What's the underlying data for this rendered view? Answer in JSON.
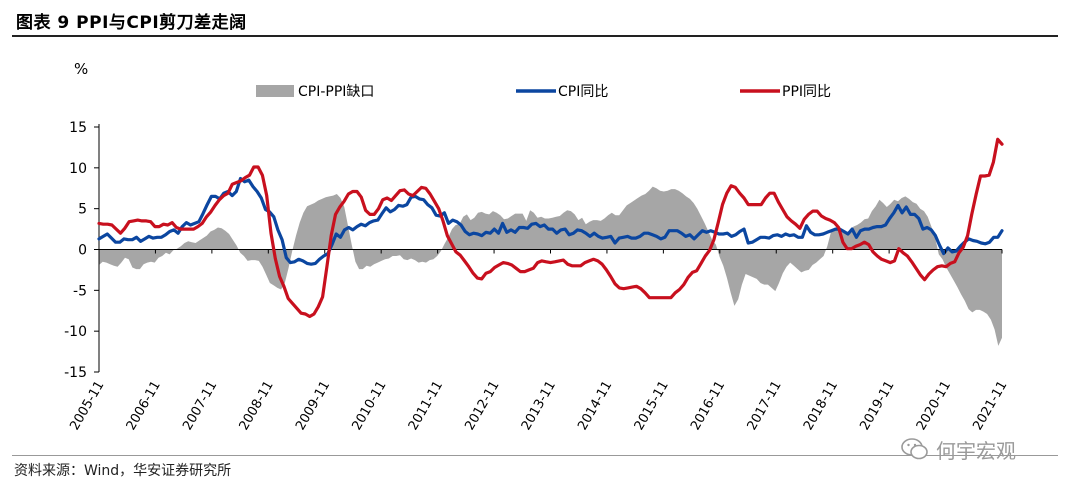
{
  "figure_title": "图表 9 PPI与CPI剪刀差走阔",
  "source_note": "资料来源：Wind，华安证券研究所",
  "watermark_text": "何宇宏观",
  "chart_data": {
    "type": "line",
    "y_unit": "%",
    "ylim": [
      -15,
      15
    ],
    "yticks": [
      15,
      10,
      5,
      0,
      -5,
      -10,
      -15
    ],
    "x_tick_labels": [
      "2005-11",
      "2006-11",
      "2007-11",
      "2008-11",
      "2009-11",
      "2010-11",
      "2011-11",
      "2012-11",
      "2013-11",
      "2014-11",
      "2015-11",
      "2016-11",
      "2017-11",
      "2018-11",
      "2019-11",
      "2020-11",
      "2021-11"
    ],
    "x_start": "2005-11",
    "x_end": "2021-11",
    "legend_position": "top",
    "grid": false,
    "colors": {
      "spread": "#a6a6a6",
      "cpi": "#0b46a0",
      "ppi": "#c8101e"
    },
    "series": [
      {
        "name": "CPI-PPI缺口",
        "kind": "area",
        "values": [
          -1.9,
          -1.5,
          -1.6,
          -1.8,
          -2.0,
          -2.1,
          -1.6,
          -1.0,
          -1.2,
          -2.2,
          -2.4,
          -2.4,
          -1.8,
          -1.6,
          -1.5,
          -1.6,
          -1.0,
          -0.8,
          -0.4,
          -0.6,
          -0.1,
          0.1,
          0.4,
          0.8,
          1.0,
          0.9,
          0.8,
          1.1,
          1.4,
          1.7,
          2.2,
          2.4,
          2.7,
          2.6,
          2.3,
          1.9,
          1.2,
          0.5,
          -0.4,
          -0.8,
          -1.4,
          -1.3,
          -1.3,
          -1.4,
          -2.1,
          -3.1,
          -4.1,
          -4.4,
          -4.7,
          -4.9,
          -4.1,
          -2.3,
          -0.2,
          1.7,
          3.3,
          4.5,
          5.3,
          5.5,
          5.7,
          6.0,
          6.2,
          6.4,
          6.5,
          6.6,
          6.8,
          6.3,
          5.2,
          2.9,
          0.6,
          -1.5,
          -2.4,
          -2.4,
          -2.0,
          -2.1,
          -1.8,
          -1.6,
          -1.4,
          -1.2,
          -1.1,
          -0.8,
          -0.8,
          -0.7,
          -1.2,
          -1.3,
          -1.1,
          -1.3,
          -1.6,
          -1.5,
          -1.6,
          -1.3,
          -1.2,
          -0.8,
          -0.2,
          0.7,
          1.5,
          2.5,
          3.0,
          3.1,
          4.0,
          4.3,
          3.6,
          3.9,
          4.5,
          4.6,
          4.4,
          4.3,
          4.7,
          4.5,
          4.2,
          3.7,
          3.8,
          4.1,
          4.4,
          4.4,
          4.4,
          3.5,
          4.8,
          4.5,
          3.9,
          4.0,
          3.8,
          3.8,
          3.9,
          4.0,
          4.1,
          4.5,
          4.8,
          4.7,
          4.3,
          3.6,
          3.9,
          3.1,
          3.4,
          3.6,
          3.6,
          3.5,
          3.8,
          4.2,
          4.5,
          4.2,
          4.2,
          4.8,
          5.4,
          5.7,
          6.0,
          6.3,
          6.6,
          6.8,
          7.2,
          7.7,
          7.5,
          7.2,
          7.1,
          7.2,
          7.4,
          7.4,
          7.2,
          6.9,
          6.5,
          6.2,
          5.7,
          5.0,
          4.1,
          3.2,
          2.2,
          1.2,
          0.6,
          -0.9,
          -2.0,
          -3.5,
          -5.3,
          -6.9,
          -6.1,
          -4.3,
          -3.0,
          -3.2,
          -3.4,
          -3.6,
          -4.1,
          -4.3,
          -4.3,
          -4.7,
          -5.1,
          -4.1,
          -2.9,
          -2.1,
          -1.6,
          -2.0,
          -2.4,
          -2.8,
          -2.6,
          -2.5,
          -1.9,
          -1.6,
          -1.2,
          -0.8,
          0.4,
          2.2,
          2.5,
          2.3,
          2.1,
          2.1,
          2.3,
          2.8,
          3.0,
          3.3,
          3.7,
          3.8,
          4.7,
          5.3,
          6.1,
          5.7,
          5.2,
          5.6,
          6.1,
          5.9,
          6.3,
          6.5,
          6.2,
          5.8,
          5.6,
          5.0,
          4.7,
          4.0,
          2.8,
          1.5,
          -0.6,
          -1.2,
          -2.2,
          -3.0,
          -3.8,
          -4.6,
          -5.5,
          -6.3,
          -7.3,
          -7.7,
          -7.4,
          -7.4,
          -7.6,
          -7.9,
          -8.6,
          -9.8,
          -11.8,
          -10.8
        ]
      },
      {
        "name": "CPI同比",
        "kind": "line",
        "values": [
          1.3,
          1.6,
          1.9,
          1.4,
          0.9,
          0.9,
          1.3,
          1.2,
          1.2,
          1.5,
          1.0,
          1.3,
          1.6,
          1.4,
          1.5,
          1.5,
          1.8,
          2.2,
          2.4,
          2.0,
          2.8,
          3.3,
          3.0,
          3.2,
          3.4,
          4.4,
          5.5,
          6.5,
          6.5,
          6.2,
          6.9,
          7.1,
          6.6,
          7.1,
          8.7,
          8.3,
          8.5,
          7.7,
          7.1,
          6.3,
          4.9,
          4.6,
          4.0,
          2.4,
          1.2,
          -1.0,
          -1.6,
          -1.5,
          -1.2,
          -1.4,
          -1.7,
          -1.8,
          -1.7,
          -1.2,
          -0.8,
          -0.5,
          0.6,
          1.9,
          1.5,
          2.4,
          2.7,
          2.4,
          2.8,
          3.1,
          2.9,
          3.3,
          3.5,
          3.6,
          4.4,
          5.1,
          4.6,
          4.9,
          5.4,
          5.3,
          5.5,
          6.4,
          6.5,
          6.2,
          6.1,
          5.5,
          5.1,
          4.2,
          4.1,
          4.5,
          3.2,
          3.6,
          3.4,
          3.0,
          2.2,
          1.8,
          2.0,
          1.9,
          1.7,
          2.1,
          2.0,
          2.5,
          2.0,
          3.2,
          2.1,
          2.4,
          2.1,
          2.7,
          2.7,
          2.6,
          3.1,
          3.2,
          2.8,
          3.0,
          2.5,
          2.5,
          2.0,
          2.4,
          2.5,
          1.8,
          2.0,
          2.4,
          2.3,
          2.0,
          1.6,
          2.0,
          1.6,
          1.4,
          1.5,
          1.6,
          0.8,
          1.4,
          1.5,
          1.6,
          1.4,
          1.4,
          1.6,
          2.0,
          2.0,
          1.8,
          1.6,
          1.3,
          1.5,
          2.3,
          2.3,
          2.3,
          2.0,
          1.6,
          1.8,
          1.3,
          1.8,
          2.3,
          2.1,
          2.3,
          2.1,
          1.9,
          1.9,
          2.0,
          1.6,
          1.8,
          2.2,
          2.5,
          0.8,
          0.9,
          1.2,
          1.5,
          1.5,
          1.4,
          1.7,
          1.8,
          1.6,
          1.9,
          1.7,
          1.8,
          1.5,
          1.5,
          2.9,
          2.1,
          1.8,
          1.8,
          1.9,
          2.1,
          2.3,
          2.5,
          2.5,
          2.2,
          1.9,
          2.5,
          1.5,
          2.3,
          2.5,
          2.5,
          2.7,
          2.8,
          2.8,
          3.0,
          3.8,
          4.5,
          5.4,
          4.5,
          5.2,
          4.3,
          4.3,
          3.8,
          2.5,
          2.7,
          2.4,
          1.7,
          0.5,
          -0.5,
          0.2,
          -0.3,
          -0.2,
          0.4,
          0.9,
          1.3,
          1.1,
          1.0,
          0.8,
          0.7,
          0.9,
          1.5,
          1.5,
          2.3
        ]
      },
      {
        "name": "PPI同比",
        "kind": "line",
        "values": [
          3.2,
          3.1,
          3.1,
          3.0,
          2.5,
          2.0,
          2.6,
          3.4,
          3.5,
          3.6,
          3.5,
          3.5,
          3.4,
          2.8,
          2.8,
          3.1,
          3.0,
          3.3,
          2.7,
          2.5,
          2.5,
          2.5,
          2.5,
          2.8,
          3.2,
          4.0,
          4.6,
          5.4,
          6.1,
          6.6,
          6.9,
          8.0,
          8.2,
          8.4,
          8.8,
          9.1,
          10.1,
          10.1,
          9.1,
          6.6,
          2.0,
          -1.1,
          -3.3,
          -4.5,
          -6.0,
          -6.6,
          -7.2,
          -7.8,
          -7.9,
          -8.2,
          -7.9,
          -7.0,
          -5.8,
          -2.1,
          1.7,
          4.3,
          5.2,
          5.9,
          6.8,
          7.1,
          7.1,
          6.4,
          4.8,
          4.3,
          4.3,
          5.0,
          6.1,
          6.3,
          6.0,
          6.6,
          7.2,
          7.3,
          6.8,
          6.6,
          7.1,
          7.6,
          7.5,
          6.8,
          5.9,
          5.0,
          3.5,
          1.7,
          0.7,
          -0.3,
          -0.7,
          -1.4,
          -2.1,
          -2.9,
          -3.5,
          -3.6,
          -2.9,
          -2.7,
          -2.2,
          -1.9,
          -1.6,
          -1.7,
          -1.9,
          -2.3,
          -2.7,
          -2.7,
          -2.5,
          -2.3,
          -1.6,
          -1.4,
          -1.5,
          -1.6,
          -1.5,
          -1.4,
          -1.3,
          -1.8,
          -2.0,
          -2.0,
          -2.0,
          -1.6,
          -1.4,
          -1.2,
          -1.4,
          -1.8,
          -2.5,
          -3.3,
          -4.2,
          -4.7,
          -4.8,
          -4.7,
          -4.6,
          -4.5,
          -4.8,
          -5.3,
          -5.9,
          -5.9,
          -5.9,
          -5.9,
          -5.9,
          -5.9,
          -5.3,
          -4.9,
          -4.3,
          -3.4,
          -2.8,
          -2.6,
          -1.7,
          -0.8,
          -0.1,
          1.2,
          3.3,
          5.5,
          6.9,
          7.8,
          7.6,
          6.9,
          6.3,
          5.5,
          5.5,
          5.5,
          5.5,
          6.3,
          6.9,
          6.9,
          5.8,
          4.9,
          4.0,
          3.5,
          3.1,
          2.6,
          3.7,
          4.3,
          4.7,
          4.7,
          4.1,
          3.8,
          3.6,
          3.3,
          2.7,
          0.9,
          0.1,
          0.1,
          0.4,
          0.6,
          0.9,
          0.6,
          -0.3,
          -0.8,
          -1.2,
          -1.4,
          -1.6,
          -1.4,
          0.1,
          -0.4,
          -0.8,
          -1.5,
          -2.3,
          -3.1,
          -3.7,
          -3.0,
          -2.5,
          -2.1,
          -2.0,
          -2.1,
          -1.7,
          -1.5,
          -0.4,
          0.3,
          1.7,
          4.4,
          6.8,
          9.0,
          9.0,
          9.1,
          10.7,
          13.5,
          12.9
        ]
      }
    ]
  }
}
